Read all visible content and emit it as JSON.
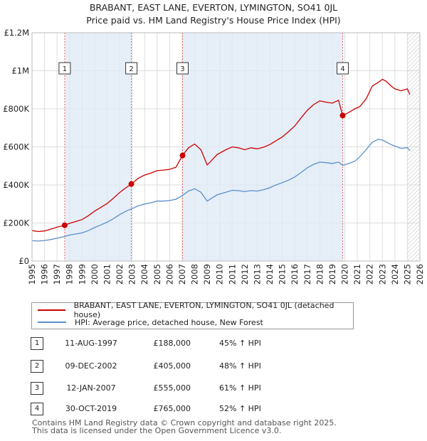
{
  "title_line1": "BRABANT, EAST LANE, EVERTON, LYMINGTON, SO41 0JL",
  "title_line2": "Price paid vs. HM Land Registry's House Price Index (HPI)",
  "chart_data": {
    "type": "line",
    "ylim": [
      0,
      1200000
    ],
    "xlim": [
      1995,
      2026
    ],
    "y_ticks": [
      {
        "value": 0,
        "label": "£0"
      },
      {
        "value": 200000,
        "label": "£200K"
      },
      {
        "value": 400000,
        "label": "£400K"
      },
      {
        "value": 600000,
        "label": "£600K"
      },
      {
        "value": 800000,
        "label": "£800K"
      },
      {
        "value": 1000000,
        "label": "£1M"
      },
      {
        "value": 1200000,
        "label": "£1.2M"
      }
    ],
    "x_ticks": [
      "1995",
      "1996",
      "1997",
      "1998",
      "1999",
      "2000",
      "2001",
      "2002",
      "2003",
      "2004",
      "2005",
      "2006",
      "2007",
      "2008",
      "2009",
      "2010",
      "2011",
      "2012",
      "2013",
      "2014",
      "2015",
      "2016",
      "2017",
      "2018",
      "2019",
      "2020",
      "2021",
      "2022",
      "2023",
      "2024",
      "2025",
      "2026"
    ],
    "series": [
      {
        "name": "BRABANT, EAST LANE, EVERTON, LYMINGTON, SO41 0JL (detached house)",
        "color": "#cc0000",
        "x": [
          1995.0,
          1995.5,
          1996.0,
          1996.5,
          1997.0,
          1997.6,
          1998.0,
          1998.5,
          1999.0,
          1999.5,
          2000.0,
          2000.5,
          2001.0,
          2001.5,
          2002.0,
          2002.5,
          2002.94,
          2003.5,
          2004.0,
          2004.5,
          2005.0,
          2005.5,
          2006.0,
          2006.5,
          2007.03,
          2007.5,
          2008.0,
          2008.5,
          2009.0,
          2009.3,
          2009.8,
          2010.5,
          2011.0,
          2011.5,
          2012.0,
          2012.5,
          2013.0,
          2013.5,
          2014.0,
          2014.5,
          2015.0,
          2015.5,
          2016.0,
          2016.5,
          2017.0,
          2017.5,
          2018.0,
          2018.5,
          2019.0,
          2019.5,
          2019.83,
          2020.3,
          2020.8,
          2021.2,
          2021.7,
          2022.2,
          2022.7,
          2023.0,
          2023.3,
          2023.7,
          2024.0,
          2024.5,
          2025.0,
          2025.2
        ],
        "y": [
          160000,
          155000,
          158000,
          168000,
          178000,
          188000,
          198000,
          208000,
          218000,
          238000,
          262000,
          282000,
          302000,
          330000,
          360000,
          385000,
          405000,
          435000,
          452000,
          462000,
          475000,
          478000,
          482000,
          493000,
          555000,
          595000,
          615000,
          585000,
          505000,
          525000,
          560000,
          585000,
          600000,
          595000,
          585000,
          595000,
          590000,
          598000,
          612000,
          632000,
          652000,
          680000,
          710000,
          752000,
          792000,
          822000,
          842000,
          835000,
          830000,
          845000,
          765000,
          780000,
          800000,
          812000,
          852000,
          920000,
          940000,
          955000,
          945000,
          920000,
          905000,
          895000,
          905000,
          875000
        ]
      },
      {
        "name": "HPI: Average price, detached house, New Forest",
        "color": "#5b8fc9",
        "x": [
          1995.0,
          1995.5,
          1996.0,
          1996.5,
          1997.0,
          1997.6,
          1998.0,
          1998.5,
          1999.0,
          1999.5,
          2000.0,
          2000.5,
          2001.0,
          2001.5,
          2002.0,
          2002.5,
          2002.94,
          2003.5,
          2004.0,
          2004.5,
          2005.0,
          2005.5,
          2006.0,
          2006.5,
          2007.03,
          2007.5,
          2008.0,
          2008.5,
          2009.0,
          2009.3,
          2009.8,
          2010.5,
          2011.0,
          2011.5,
          2012.0,
          2012.5,
          2013.0,
          2013.5,
          2014.0,
          2014.5,
          2015.0,
          2015.5,
          2016.0,
          2016.5,
          2017.0,
          2017.5,
          2018.0,
          2018.5,
          2019.0,
          2019.5,
          2019.83,
          2020.3,
          2020.8,
          2021.2,
          2021.7,
          2022.2,
          2022.7,
          2023.0,
          2023.3,
          2023.7,
          2024.0,
          2024.5,
          2025.0,
          2025.2
        ],
        "y": [
          107000,
          105000,
          108000,
          113000,
          120000,
          129000,
          137000,
          142000,
          148000,
          160000,
          176000,
          190000,
          204000,
          222000,
          244000,
          262000,
          274000,
          290000,
          300000,
          306000,
          315000,
          315000,
          318000,
          325000,
          345000,
          368000,
          380000,
          362000,
          315000,
          328000,
          348000,
          362000,
          372000,
          370000,
          365000,
          370000,
          368000,
          375000,
          385000,
          400000,
          412000,
          425000,
          442000,
          465000,
          490000,
          508000,
          520000,
          517000,
          513000,
          520000,
          503000,
          512000,
          525000,
          548000,
          585000,
          625000,
          640000,
          636000,
          626000,
          612000,
          604000,
          592000,
          596000,
          580000
        ]
      }
    ],
    "vlines": [
      1997.61,
      2002.94,
      2007.03,
      2019.83
    ],
    "markers": [
      {
        "x": 1997.61,
        "y": 188000
      },
      {
        "x": 2002.94,
        "y": 405000
      },
      {
        "x": 2007.03,
        "y": 555000
      },
      {
        "x": 2019.83,
        "y": 765000
      }
    ],
    "annotations": [
      "1",
      "2",
      "3",
      "4"
    ],
    "shaded_ranges": [
      [
        1997.61,
        2002.94
      ],
      [
        2007.03,
        2019.83
      ]
    ],
    "hatched_from": 2025.0
  },
  "legend": {
    "items": [
      {
        "label": "BRABANT, EAST LANE, EVERTON, LYMINGTON, SO41 0JL (detached house)",
        "color": "#cc0000"
      },
      {
        "label": "HPI: Average price, detached house, New Forest",
        "color": "#5b8fc9"
      }
    ]
  },
  "transactions": [
    {
      "num": "1",
      "date": "11-AUG-1997",
      "price": "£188,000",
      "hpi": "45% ↑ HPI"
    },
    {
      "num": "2",
      "date": "09-DEC-2002",
      "price": "£405,000",
      "hpi": "48% ↑ HPI"
    },
    {
      "num": "3",
      "date": "12-JAN-2007",
      "price": "£555,000",
      "hpi": "61% ↑ HPI"
    },
    {
      "num": "4",
      "date": "30-OCT-2019",
      "price": "£765,000",
      "hpi": "52% ↑ HPI"
    }
  ],
  "footer_line1": "Contains HM Land Registry data © Crown copyright and database right 2025.",
  "footer_line2": "This data is licensed under the Open Government Licence v3.0."
}
